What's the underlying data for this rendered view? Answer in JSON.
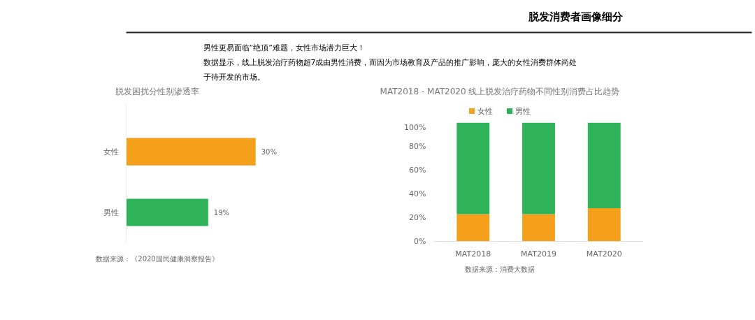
{
  "chart_data": [
    {
      "type": "other",
      "title": "脱发消费者画像细分",
      "annotations": [
        "男性更易面临“绝顶”难题，女性市场潜力巨大！",
        "数据显示，线上脱发治疗药物超7成由男性消费，而因为市场教育及产品的推广影响，庞大的女性消费群体尚处",
        "于待开发的市场。"
      ]
    },
    {
      "type": "bar",
      "orientation": "horizontal",
      "title": "脱发困扰分性别渗透率",
      "categories": [
        "女性",
        "男性"
      ],
      "values": [
        30,
        19
      ],
      "colors": [
        "#f5a01a",
        "#2eb35a"
      ],
      "value_labels": [
        "30%",
        "19%"
      ],
      "annotations": [
        "数据来源：《2020国民健康洞察报告》"
      ]
    },
    {
      "type": "bar",
      "stacked": true,
      "title": "MAT2018 - MAT2020 线上脱发治疗药物不同性别消费占比趋势",
      "categories": [
        "MAT2018",
        "MAT2019",
        "MAT2020"
      ],
      "series": [
        {
          "name": "女性",
          "color": "#f5a01a",
          "values": [
            23,
            23,
            28
          ]
        },
        {
          "name": "男性",
          "color": "#2eb35a",
          "values": [
            77,
            77,
            72
          ]
        }
      ],
      "ylim": [
        0,
        100
      ],
      "yticks": [
        {
          "value": 0,
          "label": "0%"
        },
        {
          "value": 20,
          "label": "20%"
        },
        {
          "value": 40,
          "label": "40%"
        },
        {
          "value": 60,
          "label": "60%"
        },
        {
          "value": 80,
          "label": "80%"
        },
        {
          "value": 100,
          "label": "100%"
        }
      ],
      "legend": "top",
      "grid": false,
      "annotations": [
        "数据来源：消费大数据"
      ]
    }
  ]
}
